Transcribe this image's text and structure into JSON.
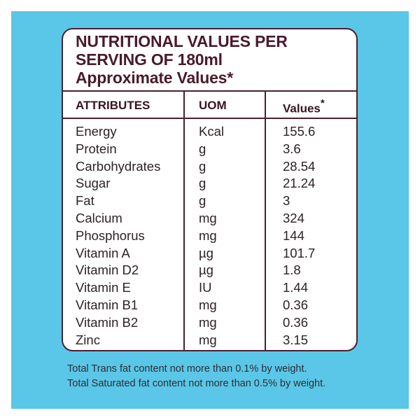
{
  "title": {
    "line1": "NUTRITIONAL VALUES PER",
    "line2": "SERVING OF 180ml",
    "line3": "Approximate Values*"
  },
  "table": {
    "headers": {
      "attributes": "ATTRIBUTES",
      "uom": "UOM",
      "values": "Values",
      "values_mark": "*"
    },
    "rows": [
      {
        "attribute": "Energy",
        "uom": "Kcal",
        "value": "155.6"
      },
      {
        "attribute": "Protein",
        "uom": "g",
        "value": "3.6"
      },
      {
        "attribute": "Carbohydrates",
        "uom": "g",
        "value": "28.54"
      },
      {
        "attribute": "Sugar",
        "uom": "g",
        "value": "21.24"
      },
      {
        "attribute": "Fat",
        "uom": "g",
        "value": "3"
      },
      {
        "attribute": "Calcium",
        "uom": "mg",
        "value": "324"
      },
      {
        "attribute": "Phosphorus",
        "uom": "mg",
        "value": "144"
      },
      {
        "attribute": "Vitamin A",
        "uom": "µg",
        "value": "101.7"
      },
      {
        "attribute": "Vitamin D2",
        "uom": "µg",
        "value": "1.8"
      },
      {
        "attribute": "Vitamin E",
        "uom": "IU",
        "value": "1.44"
      },
      {
        "attribute": "Vitamin B1",
        "uom": "mg",
        "value": "0.36"
      },
      {
        "attribute": "Vitamin B2",
        "uom": "mg",
        "value": "0.36"
      },
      {
        "attribute": "Zinc",
        "uom": "mg",
        "value": "3.15"
      }
    ]
  },
  "footnotes": {
    "line1": "Total Trans fat content not more than 0.1% by weight.",
    "line2": "Total Saturated fat content not more than 0.5% by weight."
  },
  "colors": {
    "background": "#5ac7e8",
    "card": "#ffffff",
    "border": "#4a1f30",
    "title_text": "#4a1a2c"
  }
}
